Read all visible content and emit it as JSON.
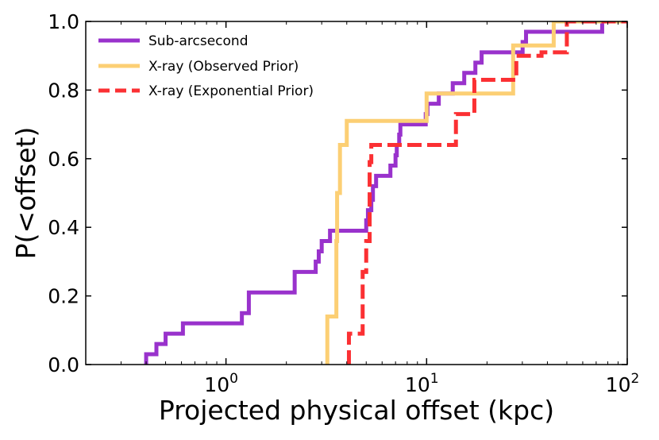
{
  "chart_data": {
    "type": "line",
    "xlabel": "Projected physical offset (kpc)",
    "ylabel": "P(<offset)",
    "xscale": "log",
    "xlim": [
      0.2,
      100
    ],
    "ylim": [
      0,
      1.0
    ],
    "xticks": [
      {
        "value": 1,
        "base": "10",
        "exp": "0"
      },
      {
        "value": 10,
        "base": "10",
        "exp": "1"
      },
      {
        "value": 100,
        "base": "10",
        "exp": "2"
      }
    ],
    "yticks": [
      {
        "value": 0.0,
        "label": "0.0"
      },
      {
        "value": 0.2,
        "label": "0.2"
      },
      {
        "value": 0.4,
        "label": "0.4"
      },
      {
        "value": 0.6,
        "label": "0.6"
      },
      {
        "value": 0.8,
        "label": "0.8"
      },
      {
        "value": 1.0,
        "label": "1.0"
      }
    ],
    "legend_position": "top-left",
    "grid": false,
    "series": [
      {
        "name": "Sub-arcsecond",
        "color": "#9932cc",
        "dash": "solid",
        "steps": [
          [
            0.4,
            0.03
          ],
          [
            0.45,
            0.06
          ],
          [
            0.5,
            0.09
          ],
          [
            0.61,
            0.12
          ],
          [
            1.2,
            0.15
          ],
          [
            1.3,
            0.21
          ],
          [
            2.2,
            0.24
          ],
          [
            2.2,
            0.27
          ],
          [
            2.8,
            0.3
          ],
          [
            2.9,
            0.33
          ],
          [
            3.0,
            0.36
          ],
          [
            3.3,
            0.39
          ],
          [
            5.0,
            0.42
          ],
          [
            5.1,
            0.45
          ],
          [
            5.3,
            0.48
          ],
          [
            5.4,
            0.52
          ],
          [
            5.6,
            0.55
          ],
          [
            6.6,
            0.58
          ],
          [
            7.0,
            0.61
          ],
          [
            7.1,
            0.64
          ],
          [
            7.3,
            0.67
          ],
          [
            7.4,
            0.7
          ],
          [
            9.9,
            0.73
          ],
          [
            10.1,
            0.76
          ],
          [
            11.5,
            0.79
          ],
          [
            13.5,
            0.82
          ],
          [
            15.4,
            0.85
          ],
          [
            17.5,
            0.88
          ],
          [
            18.8,
            0.91
          ],
          [
            30.1,
            0.94
          ],
          [
            31.3,
            0.97
          ],
          [
            75.0,
            1.0
          ],
          [
            100,
            1.0
          ]
        ]
      },
      {
        "name": "X-ray (Observed Prior)",
        "color": "#fccf74",
        "dash": "solid",
        "steps": [
          [
            3.2,
            0.14
          ],
          [
            3.55,
            0.36
          ],
          [
            3.58,
            0.5
          ],
          [
            3.7,
            0.64
          ],
          [
            4.0,
            0.71
          ],
          [
            10.0,
            0.79
          ],
          [
            27.0,
            0.93
          ],
          [
            43.0,
            1.0
          ]
        ]
      },
      {
        "name": "X-ray (Exponential Prior)",
        "color": "#fb3033",
        "dash": "dashed",
        "steps": [
          [
            4.1,
            0.09
          ],
          [
            4.8,
            0.27
          ],
          [
            5.0,
            0.36
          ],
          [
            5.2,
            0.59
          ],
          [
            5.3,
            0.64
          ],
          [
            14.0,
            0.73
          ],
          [
            17.3,
            0.83
          ],
          [
            28.0,
            0.9
          ],
          [
            37.4,
            0.91
          ],
          [
            50.0,
            1.0
          ]
        ]
      }
    ]
  }
}
